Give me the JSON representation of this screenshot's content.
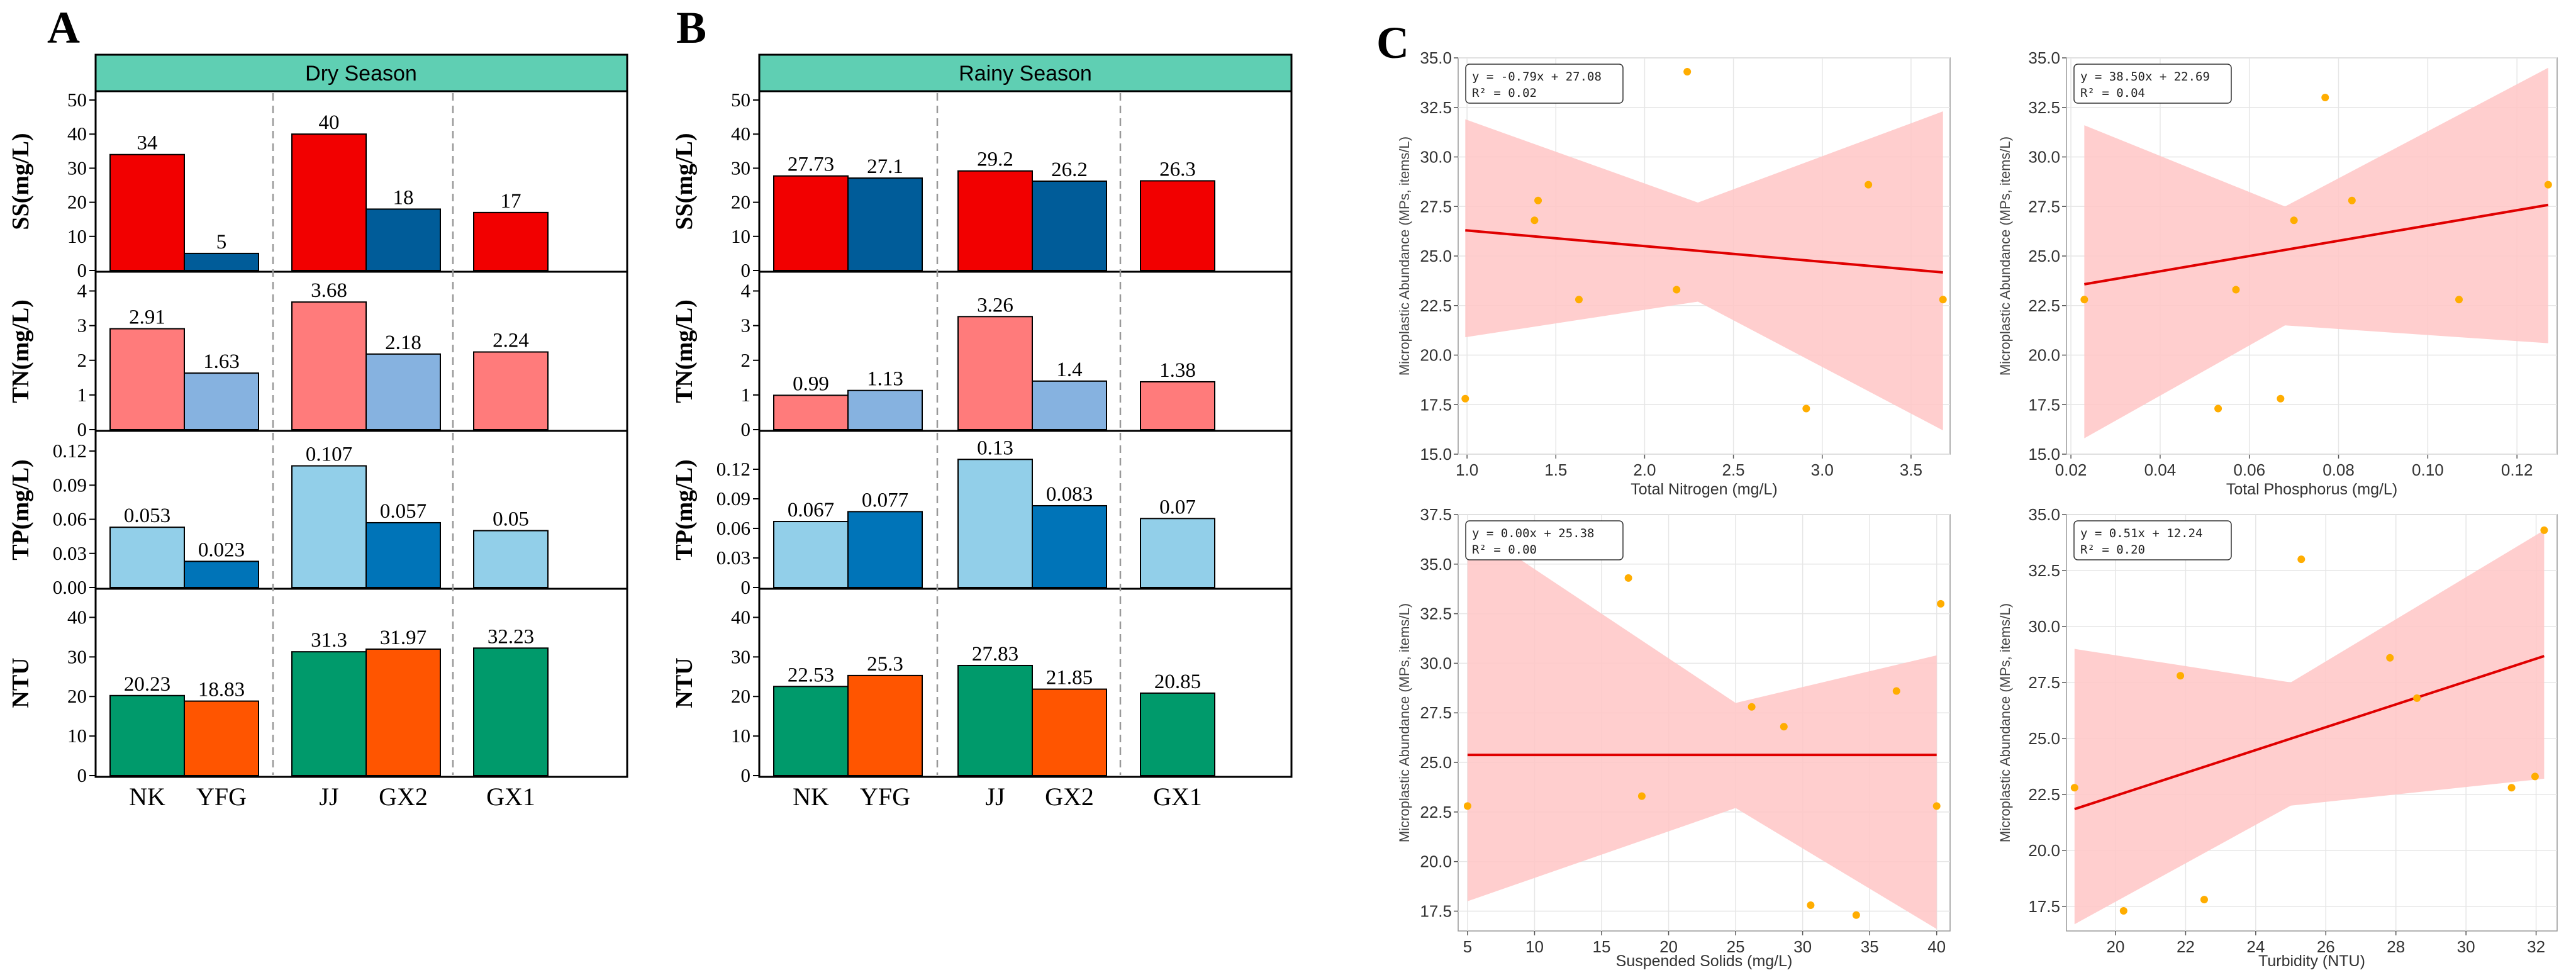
{
  "panels": {
    "A": {
      "letter": "A",
      "season": "Dry Season",
      "categories": [
        "NK",
        "YFG",
        "JJ",
        "GX2",
        "GX1"
      ]
    },
    "B": {
      "letter": "B",
      "season": "Rainy Season",
      "categories": [
        "NK",
        "YFG",
        "JJ",
        "GX2",
        "GX1"
      ]
    },
    "C": {
      "letter": "C"
    }
  },
  "colors": {
    "header_bg": "#5fcfb3",
    "ss_a": "#f20000",
    "ss_b": "#005c99",
    "tn_a": "#ff7b7b",
    "tn_b": "#86b2e0",
    "tp_a": "#92cfe9",
    "tp_b": "#0074b8",
    "ntu_a": "#009a6b",
    "ntu_b": "#ff5500",
    "band": "#ffc5c5",
    "line": "#e00000",
    "point": "#ffad00"
  },
  "chart_data": [
    {
      "id": "A",
      "type": "bar",
      "title": "Dry Season",
      "categories": [
        "NK",
        "YFG",
        "JJ",
        "GX2",
        "GX1"
      ],
      "rows": [
        {
          "ylabel": "SS(mg/L)",
          "ylim": [
            0,
            50
          ],
          "ticks": [
            "0",
            "10",
            "20",
            "30",
            "40",
            "50"
          ],
          "tick_values": [
            0,
            10,
            20,
            30,
            40,
            50
          ],
          "values": [
            34,
            5,
            40,
            18,
            17
          ],
          "labels": [
            "34",
            "5",
            "40",
            "18",
            "17"
          ]
        },
        {
          "ylabel": "TN(mg/L)",
          "ylim": [
            0,
            4.3
          ],
          "ticks": [
            "0",
            "1",
            "2",
            "3",
            "4"
          ],
          "tick_values": [
            0,
            1,
            2,
            3,
            4
          ],
          "values": [
            2.91,
            1.63,
            3.68,
            2.18,
            2.24
          ],
          "labels": [
            "2.91",
            "1.63",
            "3.68",
            "2.18",
            "2.24"
          ]
        },
        {
          "ylabel": "TP(mg/L)",
          "ylim": [
            0,
            0.13
          ],
          "ticks": [
            "0.00",
            "0.03",
            "0.06",
            "0.09",
            "0.12"
          ],
          "tick_values": [
            0,
            0.03,
            0.06,
            0.09,
            0.12
          ],
          "values": [
            0.053,
            0.023,
            0.107,
            0.057,
            0.05
          ],
          "labels": [
            "0.053",
            "0.023",
            "0.107",
            "0.057",
            "0.05"
          ]
        },
        {
          "ylabel": "NTU",
          "ylim": [
            0,
            45
          ],
          "ticks": [
            "0",
            "10",
            "20",
            "30",
            "40"
          ],
          "tick_values": [
            0,
            10,
            20,
            30,
            40
          ],
          "values": [
            20.23,
            18.83,
            31.3,
            31.97,
            32.23
          ],
          "labels": [
            "20.23",
            "18.83",
            "31.3",
            "31.97",
            "32.23"
          ]
        }
      ]
    },
    {
      "id": "B",
      "type": "bar",
      "title": "Rainy Season",
      "categories": [
        "NK",
        "YFG",
        "JJ",
        "GX2",
        "GX1"
      ],
      "rows": [
        {
          "ylabel": "SS(mg/L)",
          "ylim": [
            0,
            50
          ],
          "ticks": [
            "0",
            "10",
            "20",
            "30",
            "40",
            "50"
          ],
          "tick_values": [
            0,
            10,
            20,
            30,
            40,
            50
          ],
          "values": [
            27.73,
            27.1,
            29.2,
            26.2,
            26.3
          ],
          "labels": [
            "27.73",
            "27.1",
            "29.2",
            "26.2",
            "26.3"
          ]
        },
        {
          "ylabel": "TN(mg/L)",
          "ylim": [
            0,
            4.3
          ],
          "ticks": [
            "0",
            "1",
            "2",
            "3",
            "4"
          ],
          "tick_values": [
            0,
            1,
            2,
            3,
            4
          ],
          "values": [
            0.99,
            1.13,
            3.26,
            1.4,
            1.38
          ],
          "labels": [
            "0.99",
            "1.13",
            "3.26",
            "1.4",
            "1.38"
          ]
        },
        {
          "ylabel": "TP(mg/L)",
          "ylim": [
            0,
            0.15
          ],
          "ticks": [
            "0",
            "0.03",
            "0.06",
            "0.09",
            "0.12"
          ],
          "tick_values": [
            0,
            0.03,
            0.06,
            0.09,
            0.12
          ],
          "values": [
            0.067,
            0.077,
            0.13,
            0.083,
            0.07
          ],
          "labels": [
            "0.067",
            "0.077",
            "0.13",
            "0.083",
            "0.07"
          ]
        },
        {
          "ylabel": "NTU",
          "ylim": [
            0,
            45
          ],
          "ticks": [
            "0",
            "10",
            "20",
            "30",
            "40"
          ],
          "tick_values": [
            0,
            10,
            20,
            30,
            40
          ],
          "values": [
            22.53,
            25.3,
            27.83,
            21.85,
            20.85
          ],
          "labels": [
            "22.53",
            "25.3",
            "27.83",
            "21.85",
            "20.85"
          ]
        }
      ]
    },
    {
      "id": "C1",
      "type": "scatter",
      "xlabel": "Total Nitrogen (mg/L)",
      "ylabel": "Microplastic Abundance (MPs, items/L)",
      "equation": "y = -0.79x + 27.08",
      "r2": "R² = 0.02",
      "xlim": [
        0.95,
        3.72
      ],
      "ylim": [
        15.0,
        35.0
      ],
      "xticks": [
        1.0,
        1.5,
        2.0,
        2.5,
        3.0,
        3.5
      ],
      "xtick_labels": [
        "1.0",
        "1.5",
        "2.0",
        "2.5",
        "3.0",
        "3.5"
      ],
      "yticks": [
        15.0,
        17.5,
        20.0,
        22.5,
        25.0,
        27.5,
        30.0,
        32.5,
        35.0
      ],
      "ytick_labels": [
        "15.0",
        "17.5",
        "20.0",
        "22.5",
        "25.0",
        "27.5",
        "30.0",
        "32.5",
        "35.0"
      ],
      "points": [
        [
          0.99,
          17.8
        ],
        [
          1.38,
          26.8
        ],
        [
          1.4,
          27.8
        ],
        [
          1.63,
          22.8
        ],
        [
          2.18,
          23.3
        ],
        [
          2.24,
          34.3
        ],
        [
          2.91,
          17.3
        ],
        [
          3.26,
          28.6
        ],
        [
          3.68,
          22.8
        ]
      ],
      "slope": -0.79,
      "intercept": 27.08,
      "band": {
        "x": [
          0.99,
          2.3,
          3.68
        ],
        "lo": [
          20.9,
          22.7,
          16.2
        ],
        "hi": [
          31.9,
          27.7,
          32.3
        ]
      }
    },
    {
      "id": "C2",
      "type": "scatter",
      "xlabel": "Total Phosphorus (mg/L)",
      "ylabel": "Microplastic Abundance (MPs, items/L)",
      "equation": "y = 38.50x + 22.69",
      "r2": "R² = 0.04",
      "xlim": [
        0.019,
        0.129
      ],
      "ylim": [
        15.0,
        35.0
      ],
      "xticks": [
        0.02,
        0.04,
        0.06,
        0.08,
        0.1,
        0.12
      ],
      "xtick_labels": [
        "0.02",
        "0.04",
        "0.06",
        "0.08",
        "0.10",
        "0.12"
      ],
      "yticks": [
        15.0,
        17.5,
        20.0,
        22.5,
        25.0,
        27.5,
        30.0,
        32.5,
        35.0
      ],
      "ytick_labels": [
        "15.0",
        "17.5",
        "20.0",
        "22.5",
        "25.0",
        "27.5",
        "30.0",
        "32.5",
        "35.0"
      ],
      "points": [
        [
          0.023,
          22.8
        ],
        [
          0.053,
          17.3
        ],
        [
          0.057,
          23.3
        ],
        [
          0.067,
          17.8
        ],
        [
          0.07,
          26.8
        ],
        [
          0.077,
          33.0
        ],
        [
          0.083,
          27.8
        ],
        [
          0.107,
          22.8
        ],
        [
          0.127,
          28.6
        ]
      ],
      "slope": 38.5,
      "intercept": 22.69,
      "band": {
        "x": [
          0.023,
          0.068,
          0.127
        ],
        "lo": [
          15.8,
          21.5,
          20.6
        ],
        "hi": [
          31.6,
          27.5,
          34.5
        ]
      }
    },
    {
      "id": "C3",
      "type": "scatter",
      "xlabel": "Suspended Solids (mg/L)",
      "ylabel": "Microplastic Abundance (MPs, items/L)",
      "equation": "y = 0.00x + 25.38",
      "r2": "R² = 0.00",
      "xlim": [
        4.3,
        41.0
      ],
      "ylim": [
        16.5,
        37.5
      ],
      "xticks": [
        5,
        10,
        15,
        20,
        25,
        30,
        35,
        40
      ],
      "xtick_labels": [
        "5",
        "10",
        "15",
        "20",
        "25",
        "30",
        "35",
        "40"
      ],
      "yticks": [
        17.5,
        20.0,
        22.5,
        25.0,
        27.5,
        30.0,
        32.5,
        35.0,
        37.5
      ],
      "ytick_labels": [
        "17.5",
        "20.0",
        "22.5",
        "25.0",
        "27.5",
        "30.0",
        "32.5",
        "35.0",
        "37.5"
      ],
      "points": [
        [
          5,
          22.8
        ],
        [
          17,
          34.3
        ],
        [
          18,
          23.3
        ],
        [
          26.2,
          27.8
        ],
        [
          28.6,
          26.8
        ],
        [
          30.6,
          17.8
        ],
        [
          34,
          17.3
        ],
        [
          37,
          28.6
        ],
        [
          40,
          22.8
        ],
        [
          40.3,
          33.0
        ]
      ],
      "slope": 0.0,
      "intercept": 25.38,
      "band": {
        "x": [
          5,
          25,
          40
        ],
        "lo": [
          18.0,
          22.7,
          16.6
        ],
        "hi": [
          37.0,
          28.0,
          30.4
        ]
      }
    },
    {
      "id": "C4",
      "type": "scatter",
      "xlabel": "Turbidity (NTU)",
      "ylabel": "Microplastic Abundance (MPs, items/L)",
      "equation": "y = 0.51x + 12.24",
      "r2": "R² = 0.20",
      "xlim": [
        18.6,
        32.6
      ],
      "ylim": [
        16.4,
        35.0
      ],
      "xticks": [
        20,
        22,
        24,
        26,
        28,
        30,
        32
      ],
      "xtick_labels": [
        "20",
        "22",
        "24",
        "26",
        "28",
        "30",
        "32"
      ],
      "yticks": [
        17.5,
        20.0,
        22.5,
        25.0,
        27.5,
        30.0,
        32.5,
        35.0
      ],
      "ytick_labels": [
        "17.5",
        "20.0",
        "22.5",
        "25.0",
        "27.5",
        "30.0",
        "32.5",
        "35.0"
      ],
      "points": [
        [
          18.83,
          22.8
        ],
        [
          20.23,
          17.3
        ],
        [
          21.85,
          27.8
        ],
        [
          22.53,
          17.8
        ],
        [
          25.3,
          33.0
        ],
        [
          27.83,
          28.6
        ],
        [
          28.6,
          26.8
        ],
        [
          31.3,
          22.8
        ],
        [
          31.97,
          23.3
        ],
        [
          32.23,
          34.3
        ]
      ],
      "slope": 0.51,
      "intercept": 12.24,
      "band": {
        "x": [
          18.83,
          25.0,
          32.23
        ],
        "lo": [
          16.7,
          22.0,
          23.2
        ],
        "hi": [
          29.0,
          27.5,
          34.3
        ]
      }
    }
  ]
}
